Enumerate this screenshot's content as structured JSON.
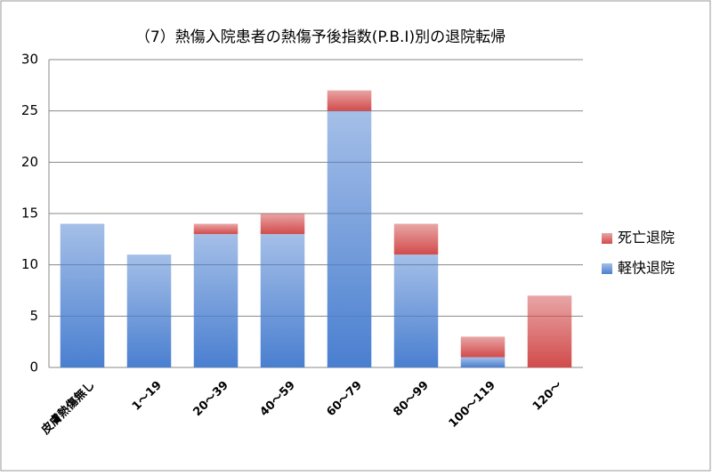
{
  "chart_data": {
    "type": "stacked_bar",
    "title": "（7）熱傷入院患者の熱傷予後指数(P.B.I)別の退院転帰",
    "categories": [
      "皮膚熱傷無し",
      "1～19",
      "20～39",
      "40～59",
      "60～79",
      "80～99",
      "100～119",
      "120～"
    ],
    "series": [
      {
        "name": "軽快退院",
        "color": "#4a7fd0",
        "values": [
          14,
          11,
          13,
          13,
          25,
          11,
          1,
          0
        ]
      },
      {
        "name": "死亡退院",
        "color": "#d24b4b",
        "values": [
          0,
          0,
          1,
          2,
          2,
          3,
          2,
          7
        ]
      }
    ],
    "ylim": [
      0,
      30
    ],
    "yticks": [
      0,
      5,
      10,
      15,
      20,
      25,
      30
    ],
    "grid": true,
    "legend": "right"
  }
}
